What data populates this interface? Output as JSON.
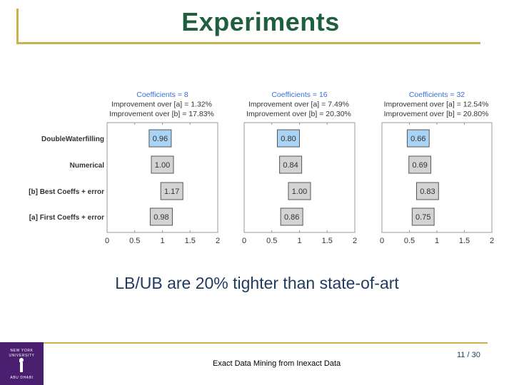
{
  "slide": {
    "title": "Experiments",
    "subtitle": "LB/UB are 20% tighter than state-of-art",
    "footer_text": "Exact Data Mining from Inexact Data",
    "page_number": "11 / 30",
    "logo": {
      "line1": "NEW YORK",
      "line2": "UNIVERSITY",
      "line3": "ABU DHABI"
    }
  },
  "colors": {
    "title": "#1f5f3f",
    "accent_rule": "#c9b24a",
    "highlight_bar": "#a9d3f5",
    "grey_bar": "#d3d3d3",
    "panel_header": "#3a6fd8",
    "logo_bg": "#4b1f6f"
  },
  "chart_data": [
    {
      "type": "bar",
      "orientation": "horizontal",
      "header": [
        "Coefficients = 8",
        "Improvement over [a] = 1.32%",
        "Improvement over [b] = 17.83%"
      ],
      "categories": [
        "DoubleWaterfilling",
        "Numerical",
        "[b] Best Coeffs + error",
        "[a] First Coeffs + error"
      ],
      "values": [
        0.96,
        1.0,
        1.17,
        0.98
      ],
      "labels": [
        "0.96",
        "1.00",
        "1.17",
        "0.98"
      ],
      "xlim": [
        0,
        2
      ],
      "xticks": [
        "0",
        "0.5",
        "1",
        "1.5",
        "2"
      ]
    },
    {
      "type": "bar",
      "orientation": "horizontal",
      "header": [
        "Coefficients = 16",
        "Improvement over [a] = 7.49%",
        "Improvement over [b] = 20.30%"
      ],
      "categories": [
        "DoubleWaterfilling",
        "Numerical",
        "[b] Best Coeffs + error",
        "[a] First Coeffs + error"
      ],
      "values": [
        0.8,
        0.84,
        1.0,
        0.86
      ],
      "labels": [
        "0.80",
        "0.84",
        "1.00",
        "0.86"
      ],
      "xlim": [
        0,
        2
      ],
      "xticks": [
        "0",
        "0.5",
        "1",
        "1.5",
        "2"
      ]
    },
    {
      "type": "bar",
      "orientation": "horizontal",
      "header": [
        "Coefficients = 32",
        "Improvement over [a] = 12.54%",
        "Improvement over [b] = 20.80%"
      ],
      "categories": [
        "DoubleWaterfilling",
        "Numerical",
        "[b] Best Coeffs + error",
        "[a] First Coeffs + error"
      ],
      "values": [
        0.66,
        0.69,
        0.83,
        0.75
      ],
      "labels": [
        "0.66",
        "0.69",
        "0.83",
        "0.75"
      ],
      "xlim": [
        0,
        2
      ],
      "xticks": [
        "0",
        "0.5",
        "1",
        "1.5",
        "2"
      ]
    }
  ]
}
